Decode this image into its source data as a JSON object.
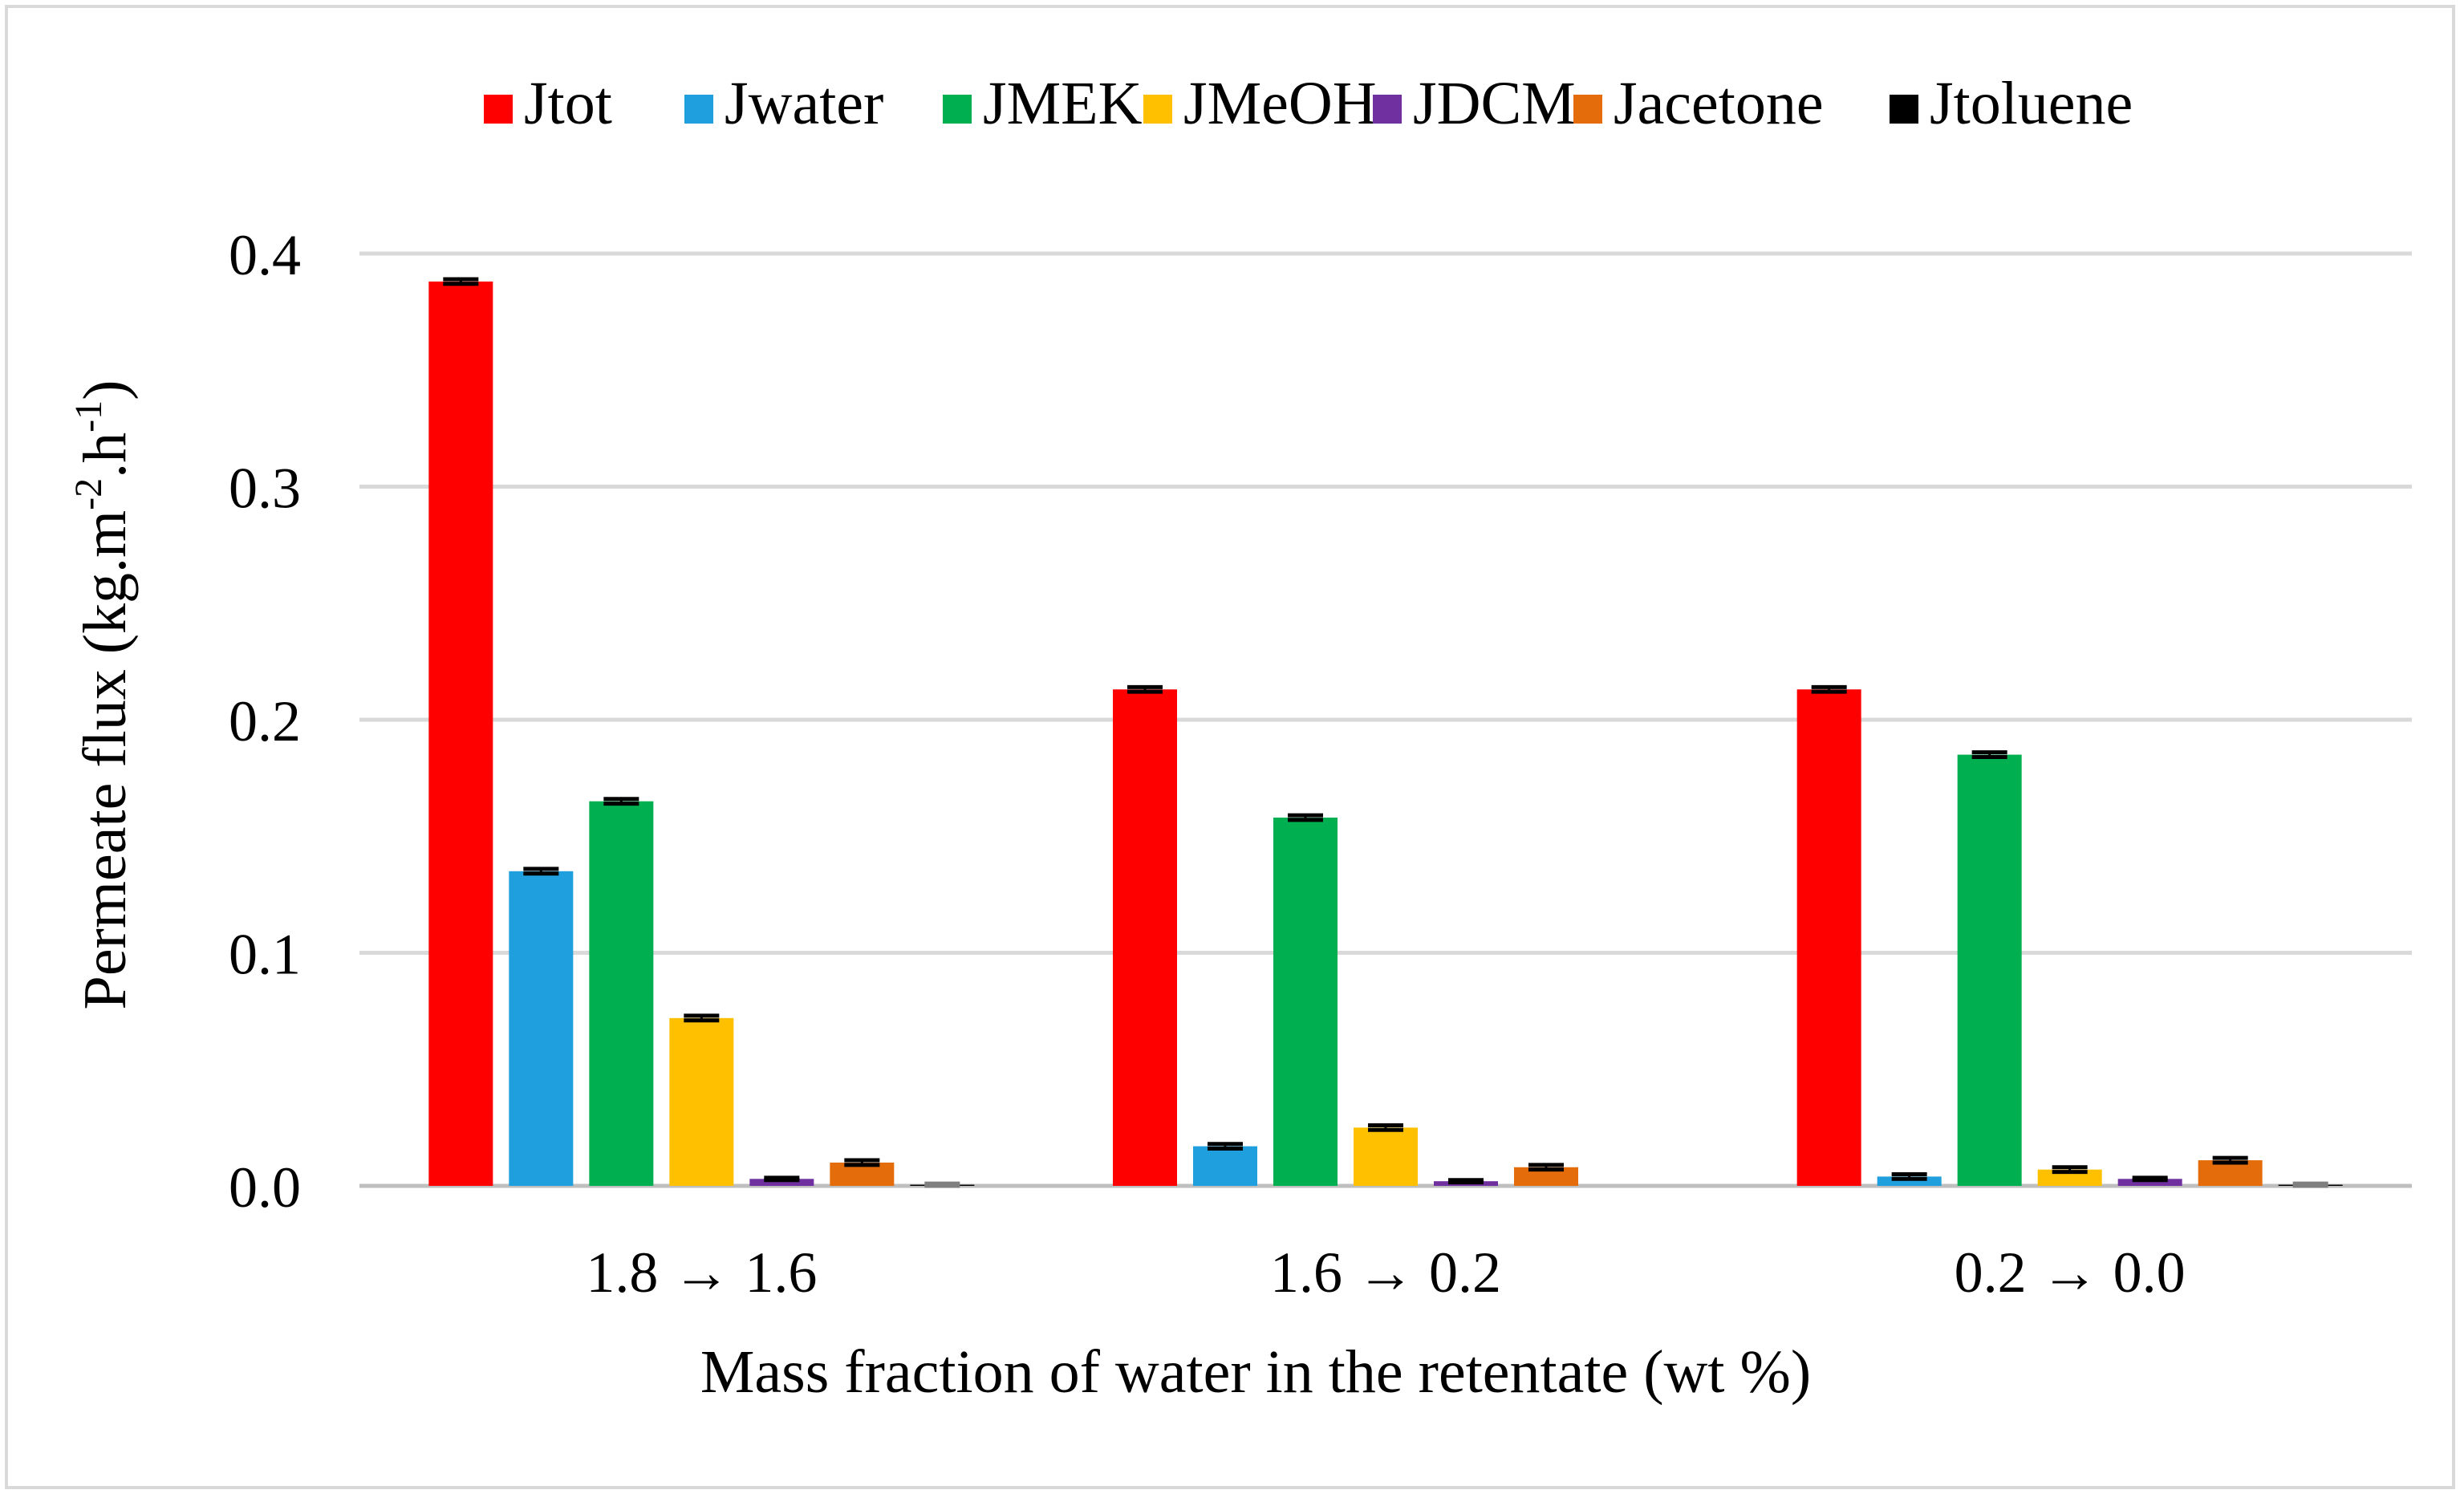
{
  "chart_data": {
    "type": "bar",
    "title": "",
    "xlabel": "Mass fraction of water in the retentate (wt %)",
    "ylabel": {
      "main": "Permeate flux (kg.m",
      "sup1": "-2",
      "mid": ".h",
      "sup2": "-1",
      "end": ")"
    },
    "ylim": [
      0,
      0.4
    ],
    "yticks": [
      0.0,
      0.1,
      0.2,
      0.3,
      0.4
    ],
    "ytick_labels": [
      "0.0",
      "0.1",
      "0.2",
      "0.3",
      "0.4"
    ],
    "grid": true,
    "legend_position": "top",
    "categories": [
      "1.8 → 1.6",
      "1.6 → 0.2",
      "0.2 → 0.0"
    ],
    "series": [
      {
        "name": "Jtot",
        "color": "#FF0000",
        "values": [
          0.388,
          0.213,
          0.213
        ],
        "errors": [
          0.001,
          0.001,
          0.001
        ]
      },
      {
        "name": "Jwater",
        "color": "#1F9FDD",
        "values": [
          0.135,
          0.017,
          0.004
        ],
        "errors": [
          0.001,
          0.001,
          0.001
        ]
      },
      {
        "name": "JMEK",
        "color": "#00B050",
        "values": [
          0.165,
          0.158,
          0.185
        ],
        "errors": [
          0.001,
          0.001,
          0.001
        ]
      },
      {
        "name": "JMeOH",
        "color": "#FFC000",
        "values": [
          0.072,
          0.025,
          0.007
        ],
        "errors": [
          0.001,
          0.001,
          0.001
        ]
      },
      {
        "name": "JDCM",
        "color": "#7030A0",
        "values": [
          0.003,
          0.002,
          0.003
        ],
        "errors": [
          0.0005,
          0.0005,
          0.0005
        ]
      },
      {
        "name": "Jacetone",
        "color": "#E46C0A",
        "values": [
          0.01,
          0.008,
          0.011
        ],
        "errors": [
          0.001,
          0.001,
          0.001
        ]
      },
      {
        "name": "Jtoluene",
        "color": "#000000",
        "values": [
          0.0005,
          0.0,
          0.0005
        ],
        "errors": [
          0.0005,
          0.0,
          0.0005
        ]
      }
    ]
  },
  "colors": {
    "grid": "#D9D9D9",
    "axis": "#BFBFBF",
    "frame": "#D9D9D9",
    "error_bar": "#000000",
    "background": "#FFFFFF"
  }
}
